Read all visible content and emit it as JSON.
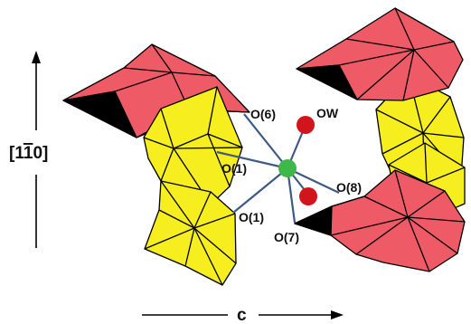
{
  "figure": {
    "axis_vertical_label": "[1",
    "axis_vertical_bar_digit": "1",
    "axis_vertical_label_end": "0]",
    "axis_horizontal_label": "c",
    "site_labels": {
      "o6": "O(6)",
      "ow": "OW",
      "o1_upper": "O(1)",
      "o1_lower": "O(1)",
      "o8": "O(8)",
      "o7": "O(7)"
    },
    "colors": {
      "red_polyhedron": "#ee5a66",
      "yellow_polyhedron": "#f7ee1f",
      "black_face": "#000000",
      "bond": "#3d5a86",
      "central_atom": "#3fb84a",
      "water_oxygen": "#d2141d"
    }
  }
}
